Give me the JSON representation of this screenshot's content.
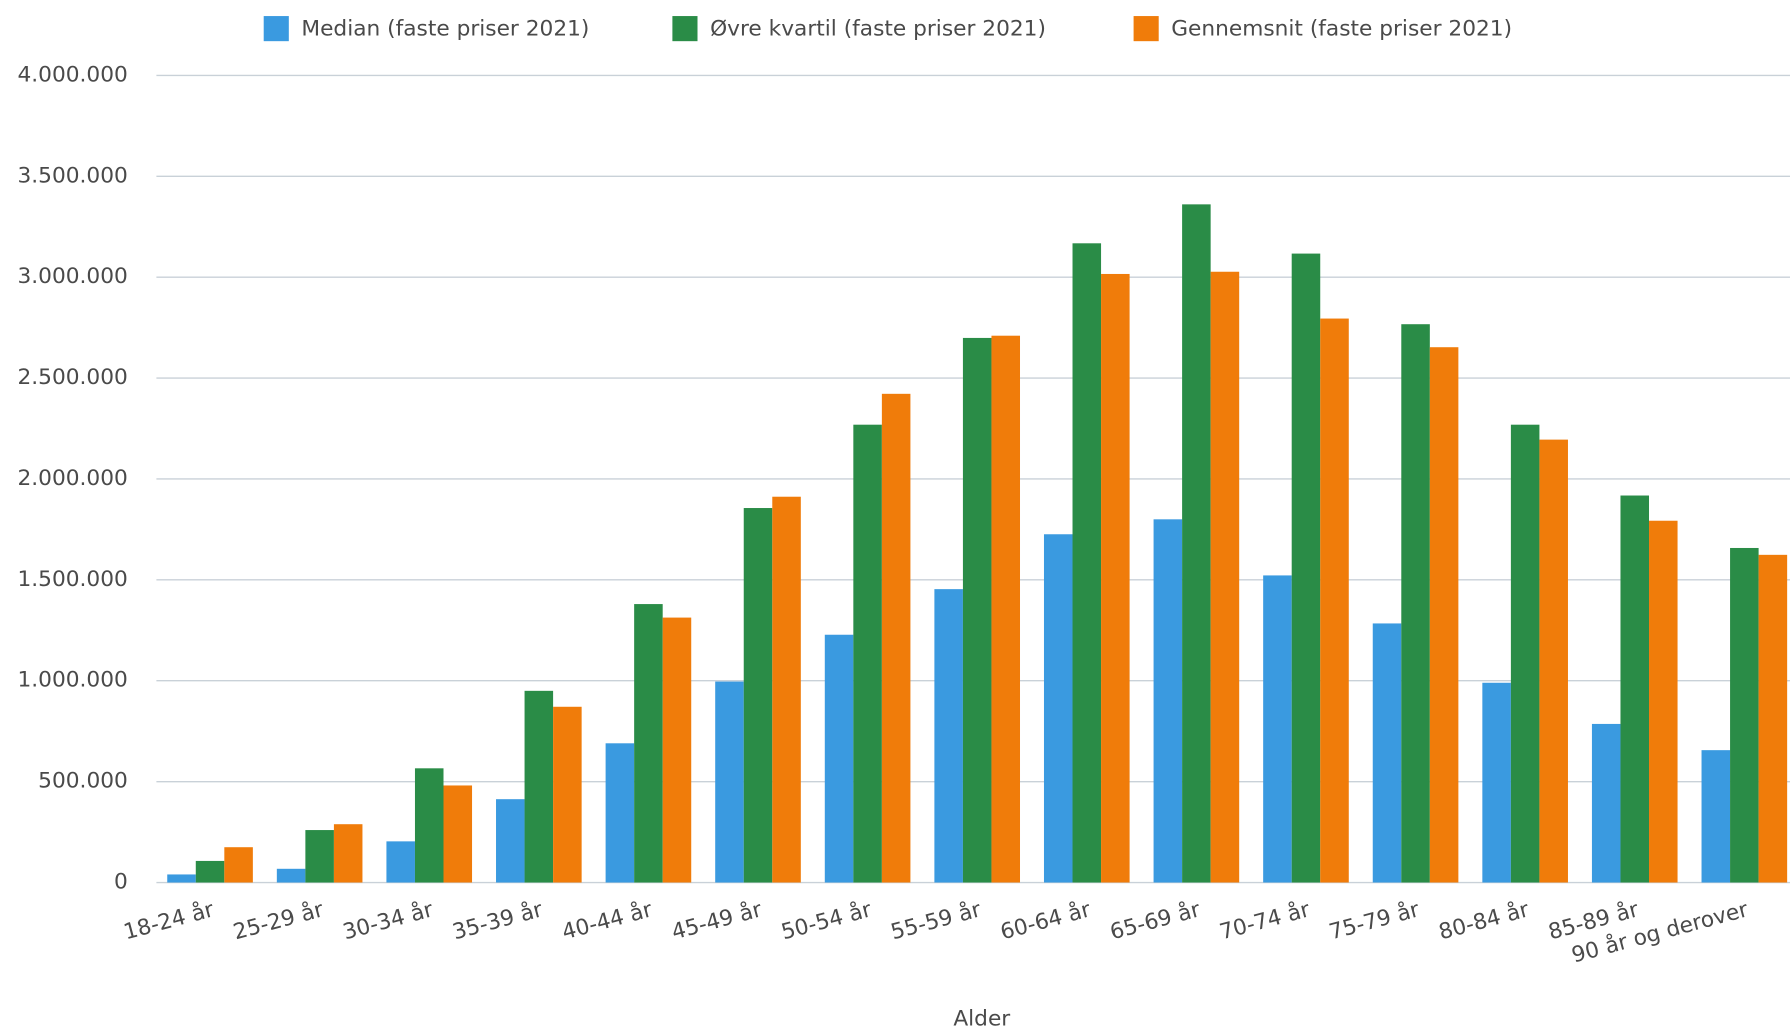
{
  "chart_data": {
    "type": "bar",
    "x_label": "Alder",
    "categories": [
      "18-24 år",
      "25-29 år",
      "30-34 år",
      "35-39 år",
      "40-44 år",
      "45-49 år",
      "50-54 år",
      "55-59 år",
      "60-64 år",
      "65-69 år",
      "70-74 år",
      "75-79 år",
      "80-84 år",
      "85-89 år",
      "90 år og derover"
    ],
    "series": [
      {
        "name": "Median (faste priser 2021)",
        "color": "#3a9ae0",
        "values": [
          40000,
          68000,
          204000,
          413000,
          690000,
          996000,
          1228000,
          1454000,
          1726000,
          1800000,
          1522000,
          1284000,
          990000,
          786000,
          656000
        ]
      },
      {
        "name": "Øvre kvartil (faste priser 2021)",
        "color": "#2a8c47",
        "values": [
          107000,
          260000,
          566000,
          950000,
          1380000,
          1856000,
          2269000,
          2699000,
          3168000,
          3361000,
          3117000,
          2767000,
          2269000,
          1918000,
          1658000
        ]
      },
      {
        "name": "Gennemsnit (faste priser 2021)",
        "color": "#f07c0a",
        "values": [
          175000,
          289000,
          481000,
          871000,
          1313000,
          1912000,
          2422000,
          2710000,
          3016000,
          3027000,
          2795000,
          2653000,
          2195000,
          1793000,
          1624000
        ]
      }
    ],
    "ylim": [
      0,
      4000000
    ],
    "yticks": [
      0,
      {
        "value": 500000,
        "label": "500.000"
      },
      {
        "value": 1000000,
        "label": "1.000.000"
      },
      {
        "value": 1500000,
        "label": "1.500.000"
      },
      {
        "value": 2000000,
        "label": "2.000.000"
      },
      {
        "value": 2500000,
        "label": "2.500.000"
      },
      {
        "value": 3000000,
        "label": "3.000.000"
      },
      {
        "value": 3500000,
        "label": "3.500.000"
      },
      {
        "value": 4000000,
        "label": "4.000.000"
      }
    ],
    "grid": true,
    "legend": "top"
  }
}
